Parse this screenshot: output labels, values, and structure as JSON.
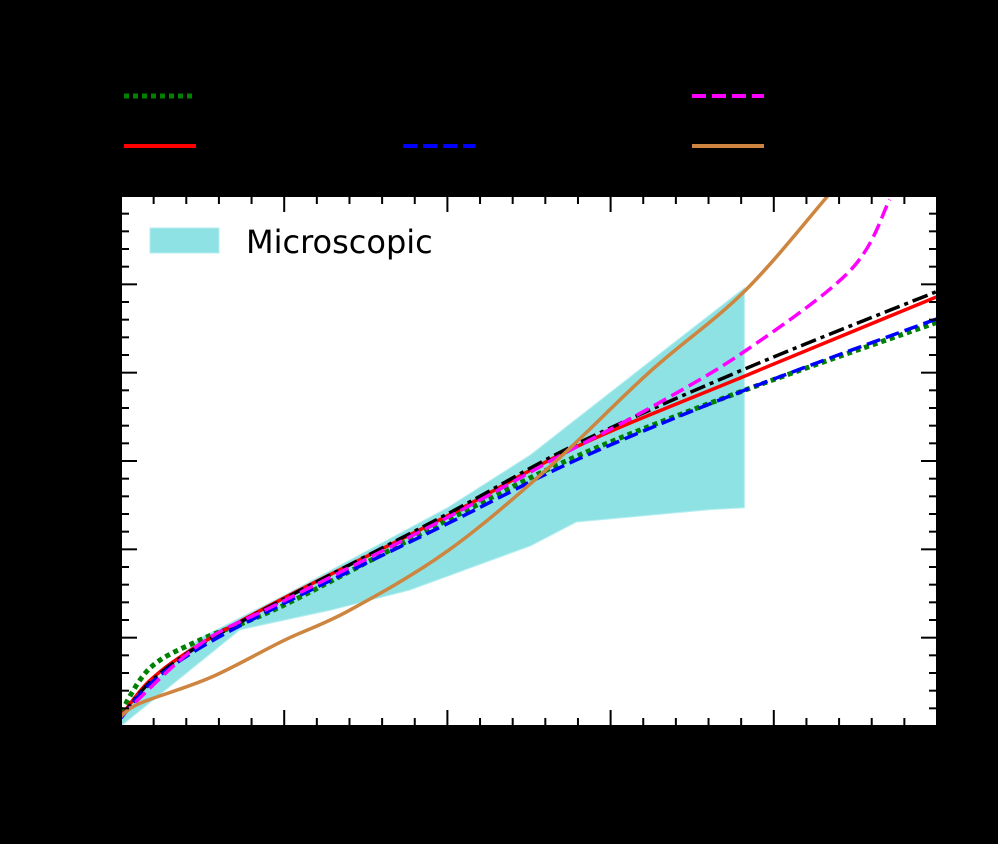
{
  "chart_data": {
    "type": "line",
    "title": "",
    "xlabel": "",
    "ylabel": "",
    "xlim": [
      0,
      5
    ],
    "ylim": [
      0,
      6
    ],
    "x_major_ticks": [
      0,
      1,
      2,
      3,
      4,
      5
    ],
    "y_major_ticks": [
      0,
      1,
      2,
      3,
      4,
      5,
      6
    ],
    "x_minor_per_major": 5,
    "y_minor_per_major": 5,
    "grid": false,
    "tick_direction": "in",
    "background": "#000000",
    "plot_background": "#ffffff",
    "note": "Axis tick labels, axis titles and top legend labels are rendered black on black background and are not visible; values are in normalized axis units (major-tick index).",
    "top_legend": {
      "position": "above plot, outside axes",
      "entries": [
        {
          "series": "green_dotted",
          "label": "",
          "color": "#008000",
          "style": "dotted"
        },
        {
          "series": "black_dashdot",
          "label": "",
          "color": "#000000",
          "style": "dashdot"
        },
        {
          "series": "magenta_dashed",
          "label": "",
          "color": "#ff00ff",
          "style": "dashed"
        },
        {
          "series": "red_solid",
          "label": "",
          "color": "#ff0000",
          "style": "solid"
        },
        {
          "series": "blue_dashed",
          "label": "",
          "color": "#0000ff",
          "style": "dashed"
        },
        {
          "series": "orange_solid",
          "label": "",
          "color": "#cd853f",
          "style": "solid"
        }
      ]
    },
    "inner_legend": {
      "position": "upper left",
      "entries": [
        {
          "label": "Microscopic",
          "color": "#8ee2e4",
          "type": "band"
        }
      ]
    },
    "band": {
      "name": "Microscopic",
      "color": "#8ee2e4",
      "upper": {
        "x": [
          0.0,
          0.48,
          1.0,
          2.0,
          2.51,
          3.25,
          3.82
        ],
        "y": [
          0.16,
          0.99,
          1.48,
          2.47,
          3.07,
          4.14,
          4.96
        ]
      },
      "lower": {
        "x": [
          0.0,
          0.73,
          1.28,
          1.77,
          2.51,
          2.79,
          3.61,
          3.82
        ],
        "y": [
          0.0,
          1.09,
          1.31,
          1.54,
          2.04,
          2.31,
          2.45,
          2.47
        ]
      }
    },
    "series": [
      {
        "name": "green_dotted",
        "color": "#008000",
        "style": "dotted",
        "x": [
          0.0,
          0.18,
          0.48,
          1.0,
          2.0,
          2.8,
          3.82,
          5.0
        ],
        "y": [
          0.16,
          0.66,
          0.97,
          1.37,
          2.33,
          3.06,
          3.8,
          4.57
        ]
      },
      {
        "name": "red_solid",
        "color": "#ff0000",
        "style": "solid",
        "x": [
          0.0,
          0.18,
          0.48,
          1.0,
          2.0,
          2.8,
          3.82,
          5.0
        ],
        "y": [
          0.11,
          0.52,
          0.92,
          1.45,
          2.38,
          3.17,
          3.96,
          4.86
        ]
      },
      {
        "name": "black_dashdot",
        "color": "#000000",
        "style": "dashdot",
        "x": [
          0.0,
          0.18,
          0.48,
          1.0,
          2.0,
          2.8,
          3.82,
          5.0
        ],
        "y": [
          0.1,
          0.5,
          0.91,
          1.44,
          2.4,
          3.2,
          4.04,
          4.92
        ]
      },
      {
        "name": "blue_dashed",
        "color": "#0000ff",
        "style": "dashed",
        "x": [
          0.0,
          0.18,
          0.48,
          1.0,
          2.0,
          2.8,
          3.82,
          5.0
        ],
        "y": [
          0.09,
          0.48,
          0.88,
          1.39,
          2.29,
          3.02,
          3.8,
          4.61
        ]
      },
      {
        "name": "magenta_dashed",
        "color": "#ff00ff",
        "style": "dashed",
        "x": [
          0.0,
          0.48,
          1.0,
          2.0,
          2.69,
          3.24,
          3.82,
          4.47,
          4.71
        ],
        "y": [
          0.11,
          0.92,
          1.42,
          2.36,
          3.06,
          3.6,
          4.24,
          5.16,
          5.96
        ]
      },
      {
        "name": "orange_solid",
        "color": "#cd853f",
        "style": "solid",
        "x": [
          0.0,
          0.12,
          0.55,
          1.0,
          1.4,
          2.0,
          2.63,
          3.24,
          3.82,
          4.33
        ],
        "y": [
          0.11,
          0.26,
          0.55,
          0.97,
          1.31,
          1.98,
          2.94,
          4.01,
          4.92,
          6.0
        ]
      }
    ]
  }
}
